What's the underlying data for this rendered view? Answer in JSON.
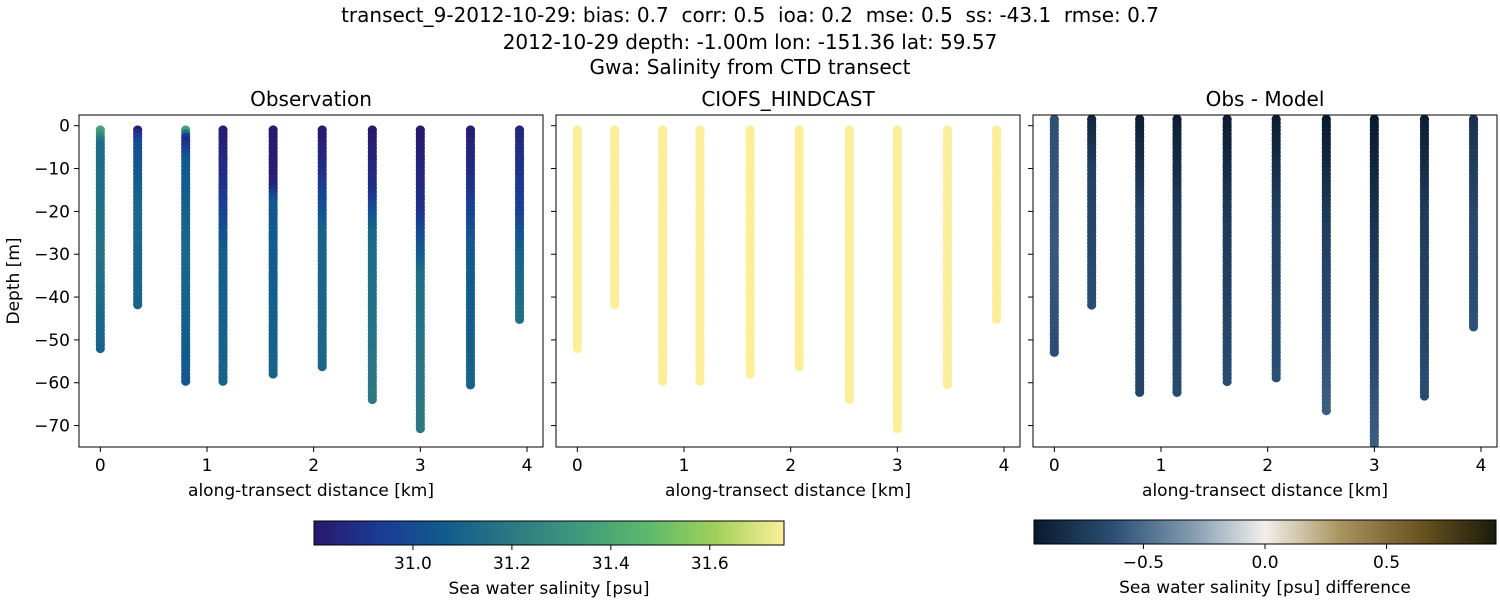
{
  "suptitle": {
    "line1": "transect_9-2012-10-29: bias: 0.7  corr: 0.5  ioa: 0.2  mse: 0.5  ss: -43.1  rmse: 0.7",
    "line2": "2012-10-29 depth: -1.00m lon: -151.36 lat: 59.57",
    "line3": "Gwa: Salinity from CTD transect"
  },
  "chart_data": [
    {
      "type": "scatter",
      "title": "Observation",
      "xlabel": "along-transect distance [km]",
      "ylabel": "Depth [m]",
      "xlim": [
        -0.2,
        4.15
      ],
      "ylim": [
        -75,
        2.5
      ],
      "xticks": [
        0,
        1,
        2,
        3,
        4
      ],
      "yticks": [
        0,
        -10,
        -20,
        -30,
        -40,
        -50,
        -60,
        -70
      ],
      "grid": false,
      "stations": [
        {
          "x": 0.0,
          "depth_top": -1,
          "depth_bottom": -52,
          "profile": [
            [
              -1,
              31.38
            ],
            [
              -4,
              31.13
            ],
            [
              -30,
              31.17
            ],
            [
              -52,
              31.1
            ]
          ]
        },
        {
          "x": 0.35,
          "depth_top": -1,
          "depth_bottom": -42,
          "profile": [
            [
              -1,
              30.83
            ],
            [
              -4,
              31.0
            ],
            [
              -20,
              31.12
            ],
            [
              -42,
              31.1
            ]
          ]
        },
        {
          "x": 0.8,
          "depth_top": -1,
          "depth_bottom": -60,
          "profile": [
            [
              -1,
              31.38
            ],
            [
              -3,
              30.85
            ],
            [
              -8,
              31.05
            ],
            [
              -30,
              31.12
            ],
            [
              -60,
              31.05
            ]
          ]
        },
        {
          "x": 1.15,
          "depth_top": -1,
          "depth_bottom": -60,
          "profile": [
            [
              -1,
              30.82
            ],
            [
              -15,
              30.9
            ],
            [
              -30,
              31.08
            ],
            [
              -60,
              31.1
            ]
          ]
        },
        {
          "x": 1.62,
          "depth_top": -1,
          "depth_bottom": -58,
          "profile": [
            [
              -1,
              30.8
            ],
            [
              -14,
              30.83
            ],
            [
              -18,
              31.05
            ],
            [
              -58,
              31.1
            ]
          ]
        },
        {
          "x": 2.08,
          "depth_top": -1,
          "depth_bottom": -57,
          "profile": [
            [
              -1,
              30.8
            ],
            [
              -12,
              30.9
            ],
            [
              -25,
              31.1
            ],
            [
              -57,
              31.12
            ]
          ]
        },
        {
          "x": 2.55,
          "depth_top": -1,
          "depth_bottom": -64,
          "profile": [
            [
              -1,
              30.8
            ],
            [
              -15,
              30.88
            ],
            [
              -25,
              31.12
            ],
            [
              -64,
              31.2
            ]
          ]
        },
        {
          "x": 3.0,
          "depth_top": -1,
          "depth_bottom": -71,
          "profile": [
            [
              -1,
              30.8
            ],
            [
              -20,
              30.9
            ],
            [
              -35,
              31.15
            ],
            [
              -71,
              31.2
            ]
          ]
        },
        {
          "x": 3.47,
          "depth_top": -1,
          "depth_bottom": -61,
          "profile": [
            [
              -1,
              30.82
            ],
            [
              -15,
              30.9
            ],
            [
              -28,
              31.05
            ],
            [
              -61,
              31.1
            ]
          ]
        },
        {
          "x": 3.93,
          "depth_top": -1,
          "depth_bottom": -46,
          "profile": [
            [
              -1,
              30.85
            ],
            [
              -20,
              30.95
            ],
            [
              -30,
              31.1
            ],
            [
              -46,
              31.15
            ]
          ]
        }
      ]
    },
    {
      "type": "scatter",
      "title": "CIOFS_HINDCAST",
      "xlabel": "along-transect distance [km]",
      "ylabel": "",
      "xlim": [
        -0.2,
        4.15
      ],
      "ylim": [
        -75,
        2.5
      ],
      "xticks": [
        0,
        1,
        2,
        3,
        4
      ],
      "yticks": [
        0,
        -10,
        -20,
        -30,
        -40,
        -50,
        -60,
        -70
      ],
      "grid": false,
      "stations": [
        {
          "x": 0.0,
          "depth_top": -1,
          "depth_bottom": -52,
          "profile": [
            [
              -1,
              31.75
            ],
            [
              -52,
              31.75
            ]
          ]
        },
        {
          "x": 0.35,
          "depth_top": -1,
          "depth_bottom": -42,
          "profile": [
            [
              -1,
              31.75
            ],
            [
              -42,
              31.75
            ]
          ]
        },
        {
          "x": 0.8,
          "depth_top": -1,
          "depth_bottom": -60,
          "profile": [
            [
              -1,
              31.75
            ],
            [
              -60,
              31.75
            ]
          ]
        },
        {
          "x": 1.15,
          "depth_top": -1,
          "depth_bottom": -60,
          "profile": [
            [
              -1,
              31.75
            ],
            [
              -60,
              31.75
            ]
          ]
        },
        {
          "x": 1.62,
          "depth_top": -1,
          "depth_bottom": -58,
          "profile": [
            [
              -1,
              31.75
            ],
            [
              -58,
              31.75
            ]
          ]
        },
        {
          "x": 2.08,
          "depth_top": -1,
          "depth_bottom": -57,
          "profile": [
            [
              -1,
              31.75
            ],
            [
              -57,
              31.75
            ]
          ]
        },
        {
          "x": 2.55,
          "depth_top": -1,
          "depth_bottom": -64,
          "profile": [
            [
              -1,
              31.75
            ],
            [
              -64,
              31.75
            ]
          ]
        },
        {
          "x": 3.0,
          "depth_top": -1,
          "depth_bottom": -71,
          "profile": [
            [
              -1,
              31.75
            ],
            [
              -71,
              31.75
            ]
          ]
        },
        {
          "x": 3.47,
          "depth_top": -1,
          "depth_bottom": -61,
          "profile": [
            [
              -1,
              31.75
            ],
            [
              -61,
              31.75
            ]
          ]
        },
        {
          "x": 3.93,
          "depth_top": -1,
          "depth_bottom": -46,
          "profile": [
            [
              -1,
              31.75
            ],
            [
              -46,
              31.75
            ]
          ]
        }
      ]
    },
    {
      "type": "scatter",
      "title": "Obs - Model",
      "xlabel": "along-transect distance [km]",
      "ylabel": "",
      "xlim": [
        -0.2,
        4.15
      ],
      "ylim": [
        -75,
        2.5
      ],
      "xticks": [
        0,
        1,
        2,
        3,
        4
      ],
      "yticks": [
        0,
        -10,
        -20,
        -30,
        -40,
        -50,
        -60,
        -70
      ],
      "grid": false,
      "stations": [
        {
          "x": 0.0,
          "depth_top": 1.5,
          "depth_bottom": -53.5,
          "profile": [
            [
              1.5,
              -0.62
            ],
            [
              -30,
              -0.58
            ],
            [
              -53.5,
              -0.63
            ]
          ]
        },
        {
          "x": 0.35,
          "depth_top": 1.5,
          "depth_bottom": -42.5,
          "profile": [
            [
              1.5,
              -0.88
            ],
            [
              -10,
              -0.72
            ],
            [
              -42.5,
              -0.63
            ]
          ]
        },
        {
          "x": 0.8,
          "depth_top": 1.5,
          "depth_bottom": -62.5,
          "profile": [
            [
              1.5,
              -0.92
            ],
            [
              -20,
              -0.7
            ],
            [
              -62.5,
              -0.68
            ]
          ]
        },
        {
          "x": 1.15,
          "depth_top": 1.5,
          "depth_bottom": -62.5,
          "profile": [
            [
              1.5,
              -0.93
            ],
            [
              -20,
              -0.75
            ],
            [
              -62.5,
              -0.65
            ]
          ]
        },
        {
          "x": 1.62,
          "depth_top": 1.5,
          "depth_bottom": -60.5,
          "profile": [
            [
              1.5,
              -0.93
            ],
            [
              -20,
              -0.76
            ],
            [
              -60.5,
              -0.64
            ]
          ]
        },
        {
          "x": 2.08,
          "depth_top": 1.5,
          "depth_bottom": -59.5,
          "profile": [
            [
              1.5,
              -0.93
            ],
            [
              -20,
              -0.72
            ],
            [
              -59.5,
              -0.62
            ]
          ]
        },
        {
          "x": 2.55,
          "depth_top": 1.5,
          "depth_bottom": -67,
          "profile": [
            [
              1.5,
              -0.95
            ],
            [
              -25,
              -0.72
            ],
            [
              -67,
              -0.56
            ]
          ]
        },
        {
          "x": 3.0,
          "depth_top": 1.5,
          "depth_bottom": -75,
          "profile": [
            [
              1.5,
              -0.95
            ],
            [
              -25,
              -0.78
            ],
            [
              -75,
              -0.56
            ]
          ]
        },
        {
          "x": 3.47,
          "depth_top": 1.5,
          "depth_bottom": -63.5,
          "profile": [
            [
              1.5,
              -0.93
            ],
            [
              -20,
              -0.75
            ],
            [
              -63.5,
              -0.64
            ]
          ]
        },
        {
          "x": 3.93,
          "depth_top": 1.5,
          "depth_bottom": -47,
          "profile": [
            [
              1.5,
              -0.8
            ],
            [
              -20,
              -0.67
            ],
            [
              -47,
              -0.62
            ]
          ]
        }
      ]
    }
  ],
  "colorbars": [
    {
      "label": "Sea water salinity [psu]",
      "colormap": "haline",
      "range": [
        30.8,
        31.75
      ],
      "ticks": [
        31.0,
        31.2,
        31.4,
        31.6
      ],
      "tick_labels": [
        "31.0",
        "31.2",
        "31.4",
        "31.6"
      ]
    },
    {
      "label": "Sea water salinity [psu] difference",
      "colormap": "diff",
      "range": [
        -0.95,
        0.95
      ],
      "ticks": [
        -0.5,
        0.0,
        0.5
      ],
      "tick_labels": [
        "−0.5",
        "0.0",
        "0.5"
      ]
    }
  ],
  "colormaps": {
    "haline": [
      "#2a186c",
      "#1a3c96",
      "#125d8c",
      "#2e7a83",
      "#3f9c7b",
      "#5dba6b",
      "#a2d15b",
      "#fdef9a"
    ],
    "diff": [
      "#0a1a2e",
      "#294d72",
      "#7d97ad",
      "#f2efea",
      "#a8915c",
      "#6a5520",
      "#1c1b0b"
    ]
  },
  "styles": {
    "axis_color": "#000000",
    "background": "#ffffff"
  }
}
